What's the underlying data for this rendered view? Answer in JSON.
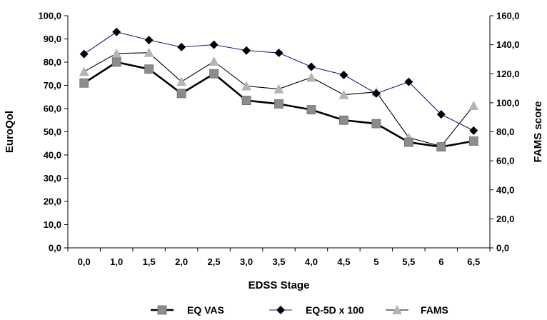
{
  "chart_data": {
    "type": "line",
    "xlabel": "EDSS Stage",
    "ylabel_left": "EuroQol",
    "ylabel_right": "FAMS score",
    "categories": [
      "0,0",
      "1,0",
      "1,5",
      "2,0",
      "2,5",
      "3,0",
      "3,5",
      "4,0",
      "4,5",
      "5",
      "5,5",
      "6",
      "6,5"
    ],
    "ylim_left": [
      0,
      100
    ],
    "ylim_right": [
      0,
      160
    ],
    "yticks_left": [
      "0,0",
      "10,0",
      "20,0",
      "30,0",
      "40,0",
      "50,0",
      "60,0",
      "70,0",
      "80,0",
      "90,0",
      "100,0"
    ],
    "yticks_right": [
      "0,0",
      "20,0",
      "40,0",
      "60,0",
      "80,0",
      "100,0",
      "120,0",
      "140,0",
      "160,0"
    ],
    "grid": false,
    "legend_position": "bottom",
    "series": [
      {
        "name": "EQ VAS",
        "axis": "left",
        "color": "#000000",
        "marker_color": "#8c8c8c",
        "marker": "square",
        "values": [
          71.0,
          80.0,
          77.0,
          66.5,
          75.0,
          63.5,
          62.0,
          59.5,
          55.0,
          53.5,
          45.5,
          43.5,
          46.0
        ]
      },
      {
        "name": "EQ-5D x 100",
        "axis": "left",
        "color": "#1a1a80",
        "marker_color": "#000000",
        "marker": "diamond",
        "values": [
          83.5,
          93.0,
          89.5,
          86.5,
          87.5,
          85.0,
          84.0,
          78.0,
          74.5,
          66.5,
          71.5,
          57.5,
          50.5
        ]
      },
      {
        "name": "FAMS",
        "axis": "right",
        "color": "#000000",
        "marker_color": "#b4b4b4",
        "marker": "triangle",
        "values": [
          121.5,
          134.0,
          134.5,
          114.5,
          128.5,
          111.5,
          109.5,
          117.5,
          105.5,
          107.5,
          76.0,
          70.0,
          98.0
        ]
      }
    ]
  }
}
